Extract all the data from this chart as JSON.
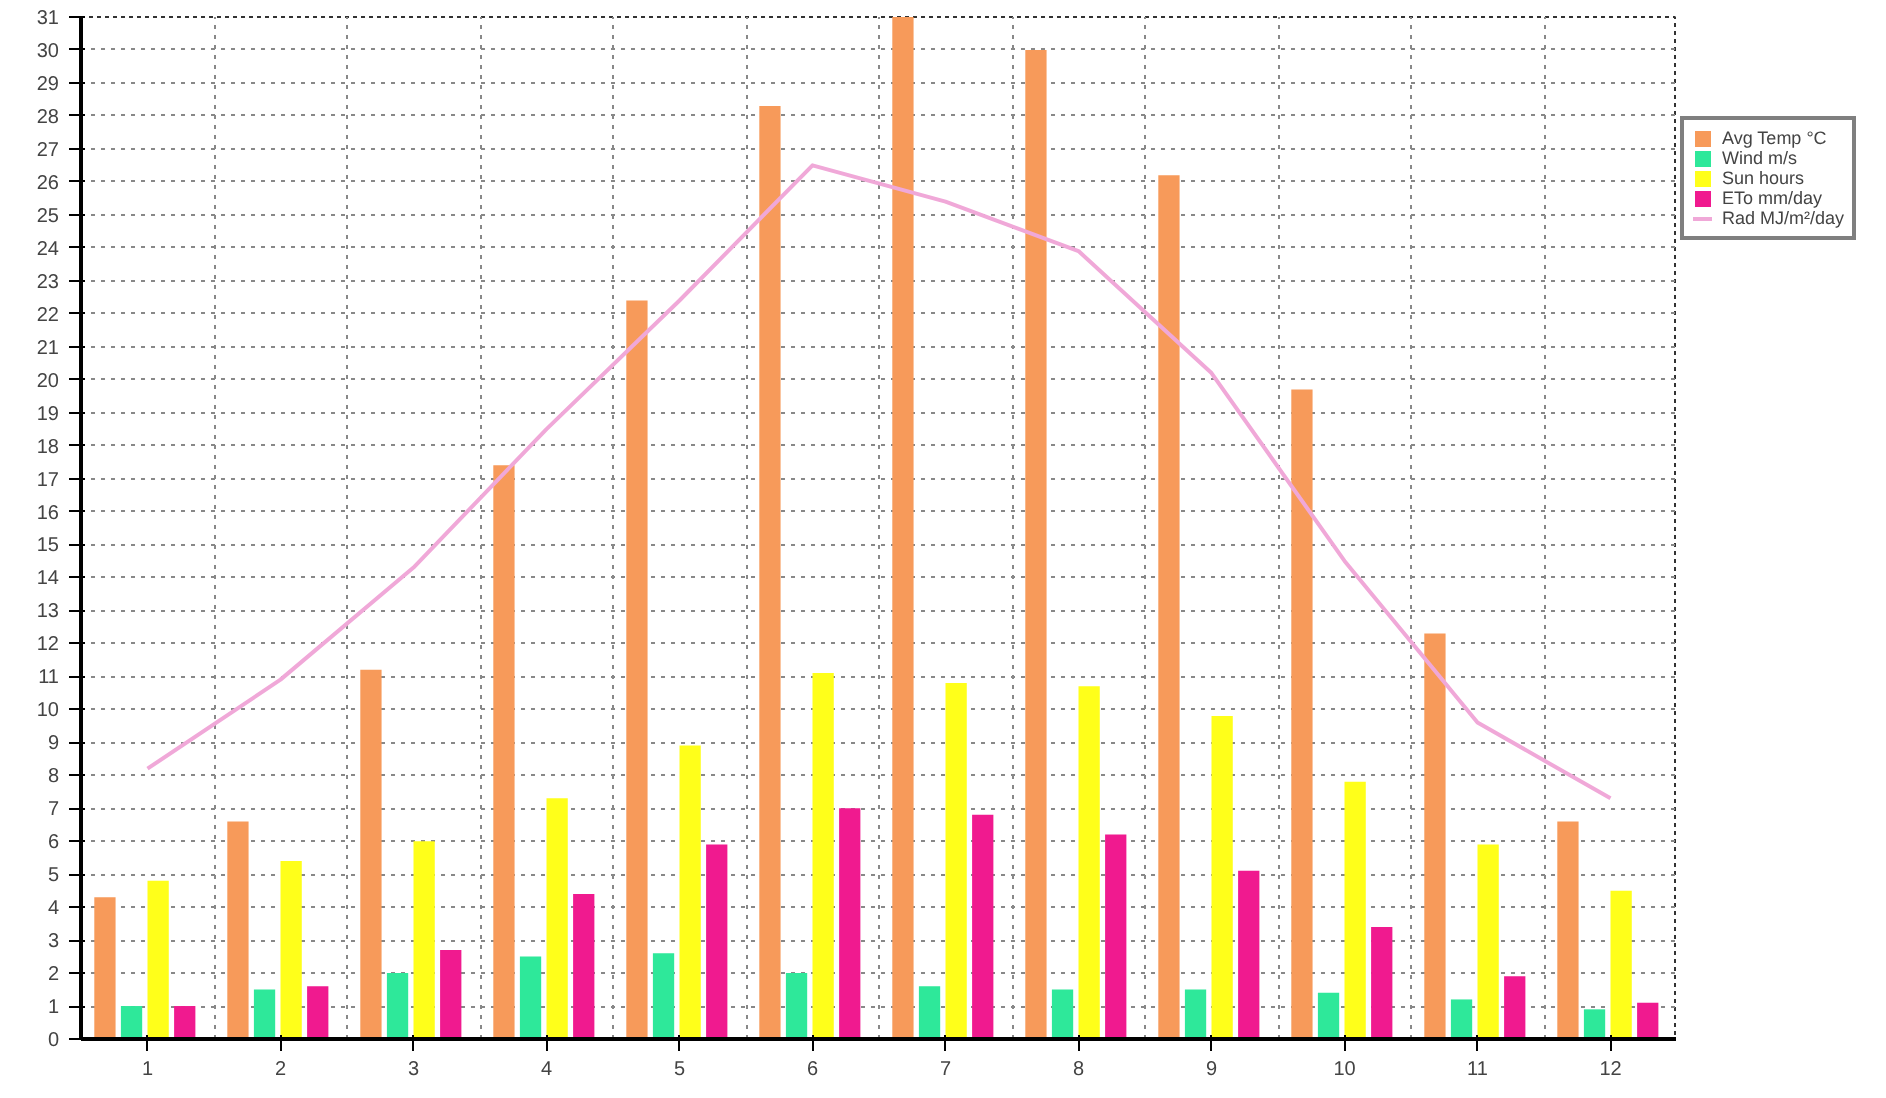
{
  "chart_data": {
    "type": "bar",
    "categories": [
      "1",
      "2",
      "3",
      "4",
      "5",
      "6",
      "7",
      "8",
      "9",
      "10",
      "11",
      "12"
    ],
    "series": [
      {
        "name": "Avg Temp °C",
        "color": "#f79a5a",
        "values": [
          4.3,
          6.6,
          11.2,
          17.4,
          22.4,
          28.3,
          31,
          30.0,
          26.2,
          19.7,
          12.3,
          6.6
        ]
      },
      {
        "name": "Wind m/s",
        "color": "#2ee89a",
        "values": [
          1.0,
          1.5,
          2.0,
          2.5,
          2.6,
          2.0,
          1.6,
          1.5,
          1.5,
          1.4,
          1.2,
          0.9
        ]
      },
      {
        "name": "Sun hours",
        "color": "#ffff1a",
        "values": [
          4.8,
          5.4,
          6.0,
          7.3,
          8.9,
          11.1,
          10.8,
          10.7,
          9.8,
          7.8,
          5.9,
          4.5
        ]
      },
      {
        "name": "ETo mm/day",
        "color": "#f01a8f",
        "values": [
          1.0,
          1.6,
          2.7,
          4.4,
          5.9,
          7.0,
          6.8,
          6.2,
          5.1,
          3.4,
          1.9,
          1.1
        ]
      },
      {
        "name": "Rad MJ/m²/day",
        "color": "#f0a8d8",
        "type": "line",
        "values": [
          8.2,
          10.9,
          14.3,
          18.5,
          22.4,
          26.5,
          25.4,
          23.9,
          20.2,
          14.5,
          9.6,
          7.3
        ]
      }
    ],
    "ylim": [
      0,
      31
    ],
    "yticks": [
      0,
      1,
      2,
      3,
      4,
      5,
      6,
      7,
      8,
      9,
      10,
      11,
      12,
      13,
      14,
      15,
      16,
      17,
      18,
      19,
      20,
      21,
      22,
      23,
      24,
      25,
      26,
      27,
      28,
      29,
      30,
      31
    ],
    "grid": true,
    "legend": "top right",
    "marker": "none",
    "line_style": "solid"
  }
}
